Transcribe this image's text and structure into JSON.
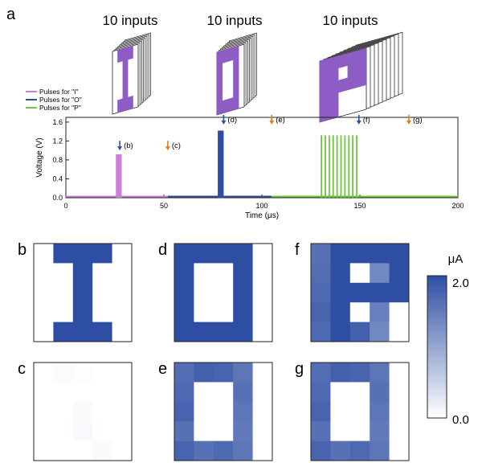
{
  "panel_a": {
    "letter": "a",
    "stack_labels": [
      "10 inputs",
      "10 inputs",
      "10 inputs"
    ],
    "legend": [
      {
        "label": "Pulses for \"I\"",
        "color": "#cc7fd6"
      },
      {
        "label": "Pulses for \"O\"",
        "color": "#2e4ea3"
      },
      {
        "label": "Pulses for \"P\"",
        "color": "#6ec63a"
      }
    ],
    "markers": [
      {
        "label": "(b)",
        "t": 27.5,
        "v": 1.0,
        "color": "#2e4ea3"
      },
      {
        "label": "(c)",
        "t": 52,
        "v": 1.0,
        "color": "#e07b1f"
      },
      {
        "label": "(d)",
        "t": 80.5,
        "v": 1.55,
        "color": "#2e4ea3"
      },
      {
        "label": "(e)",
        "t": 105,
        "v": 1.55,
        "color": "#e07b1f"
      },
      {
        "label": "(f)",
        "t": 149.5,
        "v": 1.55,
        "color": "#2e4ea3"
      },
      {
        "label": "(g)",
        "t": 175,
        "v": 1.55,
        "color": "#e07b1f"
      }
    ]
  },
  "chart_data": {
    "type": "line",
    "xlabel": "Time (μs)",
    "ylabel": "Voltage (V)",
    "xlim": [
      0,
      200
    ],
    "ylim": [
      0,
      1.7
    ],
    "xticks": [
      0,
      50,
      100,
      150,
      200
    ],
    "yticks": [
      0.0,
      0.4,
      0.8,
      1.2,
      1.6
    ],
    "ytick_labels": [
      "0.0",
      "0.4",
      "0.8",
      "1.2",
      "1.6"
    ],
    "series": [
      {
        "name": "Pulses for \"I\"",
        "color": "#cc7fd6",
        "baseline": [
          0,
          52
        ],
        "pulses": [
          {
            "start": 25.5,
            "end": 28.5,
            "v": 0.92
          }
        ]
      },
      {
        "name": "Pulses for \"O\"",
        "color": "#2e4ea3",
        "baseline": [
          52,
          105
        ],
        "pulses": [
          {
            "start": 77.5,
            "end": 80.5,
            "v": 1.42
          }
        ]
      },
      {
        "name": "Pulses for \"P\"",
        "color": "#6ec63a",
        "baseline": [
          105,
          200
        ],
        "pulses": [
          {
            "start": 130,
            "end": 130.6,
            "v": 1.32
          },
          {
            "start": 132,
            "end": 132.6,
            "v": 1.32
          },
          {
            "start": 134,
            "end": 134.6,
            "v": 1.32
          },
          {
            "start": 136,
            "end": 136.6,
            "v": 1.32
          },
          {
            "start": 138,
            "end": 138.6,
            "v": 1.32
          },
          {
            "start": 140,
            "end": 140.6,
            "v": 1.32
          },
          {
            "start": 142,
            "end": 142.6,
            "v": 1.32
          },
          {
            "start": 144,
            "end": 144.6,
            "v": 1.32
          },
          {
            "start": 146,
            "end": 146.6,
            "v": 1.32
          },
          {
            "start": 148,
            "end": 148.6,
            "v": 1.32
          }
        ]
      }
    ]
  },
  "heatmaps": [
    {
      "letter": "b",
      "grid": [
        [
          0,
          2,
          2,
          2,
          0
        ],
        [
          0,
          0,
          2,
          0,
          0
        ],
        [
          0,
          0,
          2,
          0,
          0
        ],
        [
          0,
          0,
          2,
          0,
          0
        ],
        [
          0,
          2,
          2,
          2,
          0
        ]
      ]
    },
    {
      "letter": "c",
      "grid": [
        [
          0,
          0.05,
          0.02,
          0,
          0
        ],
        [
          0,
          0,
          0,
          0,
          0
        ],
        [
          0,
          0,
          0.06,
          0,
          0
        ],
        [
          0,
          0,
          0.07,
          0,
          0
        ],
        [
          0,
          0,
          0,
          0.06,
          0
        ]
      ]
    },
    {
      "letter": "d",
      "grid": [
        [
          2,
          2,
          2,
          2,
          0
        ],
        [
          2,
          0,
          0,
          2,
          0
        ],
        [
          2,
          0,
          0,
          2,
          0
        ],
        [
          2,
          0,
          0,
          2,
          0
        ],
        [
          2,
          2,
          2,
          2,
          0
        ]
      ]
    },
    {
      "letter": "e",
      "grid": [
        [
          1.65,
          1.8,
          1.75,
          1.55,
          0
        ],
        [
          1.7,
          0,
          0,
          1.6,
          0
        ],
        [
          1.75,
          0,
          0,
          1.55,
          0
        ],
        [
          1.6,
          0,
          0,
          1.5,
          0
        ],
        [
          1.75,
          1.6,
          1.7,
          1.55,
          0
        ]
      ]
    },
    {
      "letter": "f",
      "grid": [
        [
          1.6,
          2,
          2,
          2,
          2
        ],
        [
          1.65,
          2,
          0,
          1.35,
          2
        ],
        [
          1.7,
          2,
          2,
          2,
          2
        ],
        [
          1.75,
          2,
          0,
          1.45,
          0
        ],
        [
          1.7,
          2,
          1.8,
          1.35,
          0
        ]
      ]
    },
    {
      "letter": "g",
      "grid": [
        [
          1.65,
          1.8,
          1.75,
          1.55,
          0
        ],
        [
          1.7,
          0,
          0,
          1.6,
          0
        ],
        [
          1.75,
          0,
          0,
          1.55,
          0
        ],
        [
          1.6,
          0,
          0,
          1.5,
          0
        ],
        [
          1.75,
          1.6,
          1.7,
          1.55,
          0
        ]
      ]
    }
  ],
  "colorbar": {
    "unit": "μA",
    "max_label": "2.0",
    "min_label": "0.0",
    "max": 2.0,
    "min": 0.0,
    "color_high": "#2e4ea3",
    "color_low": "#ffffff"
  }
}
